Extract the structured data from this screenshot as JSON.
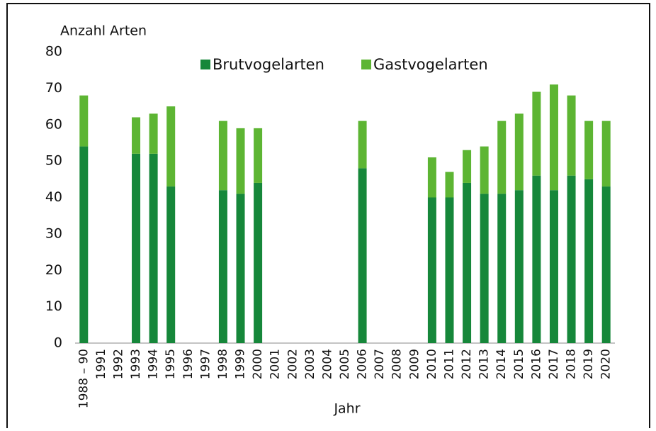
{
  "chart_data": {
    "type": "stacked_bar",
    "y_label": "Anzahl Arten",
    "x_label": "Jahr",
    "categories": [
      "1988 – 90",
      "1991",
      "1992",
      "1993",
      "1994",
      "1995",
      "1996",
      "1997",
      "1998",
      "1999",
      "2000",
      "2001",
      "2002",
      "2003",
      "2004",
      "2005",
      "2006",
      "2007",
      "2008",
      "2009",
      "2010",
      "2011",
      "2012",
      "2013",
      "2014",
      "2015",
      "2016",
      "2017",
      "2018",
      "2019",
      "2020"
    ],
    "series": [
      {
        "name": "Brutvogelarten",
        "color": "#16873a",
        "values": [
          54,
          null,
          null,
          52,
          52,
          43,
          null,
          null,
          42,
          41,
          44,
          null,
          null,
          null,
          null,
          null,
          48,
          null,
          null,
          null,
          40,
          40,
          44,
          41,
          41,
          42,
          46,
          42,
          46,
          45,
          43
        ]
      },
      {
        "name": "Gastvogelarten",
        "color": "#5db533",
        "values": [
          14,
          null,
          null,
          10,
          11,
          22,
          null,
          null,
          19,
          18,
          15,
          null,
          null,
          null,
          null,
          null,
          13,
          null,
          null,
          null,
          11,
          7,
          9,
          13,
          20,
          21,
          23,
          29,
          22,
          16,
          18
        ]
      }
    ],
    "ylim": [
      0,
      80
    ],
    "yticks": [
      0,
      10,
      20,
      30,
      40,
      50,
      60,
      70,
      80
    ],
    "legend": "top"
  }
}
